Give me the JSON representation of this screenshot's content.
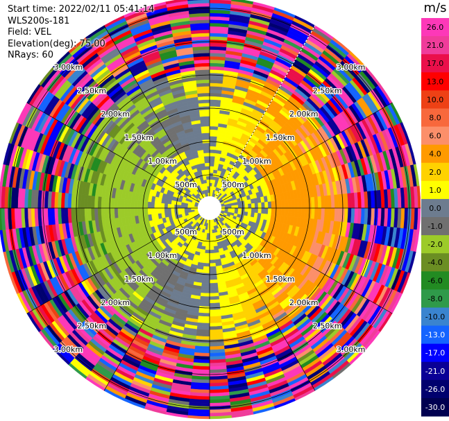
{
  "header": {
    "start_time": "Start time: 2022/02/11 05:41:14",
    "instrument": "WLS200s-181",
    "field": "Field: VEL",
    "elevation": "Elevation(deg): 75.00",
    "nrays": "NRays: 60"
  },
  "chart_data": {
    "type": "heatmap",
    "projection": "polar-ppi",
    "field": "VEL",
    "units": "m/s",
    "elevation_deg": 75.0,
    "n_rays": 60,
    "range_ring_labels": [
      "500m",
      "1.00km",
      "1.50km",
      "2.00km",
      "2.50km",
      "3.00km"
    ],
    "range_rings_km": [
      0.5,
      1.0,
      1.5,
      2.0,
      2.5,
      3.0
    ],
    "colorbar": {
      "label": "m/s",
      "ticks": [
        "26.0",
        "21.0",
        "17.0",
        "13.0",
        "10.0",
        "8.0",
        "6.0",
        "4.0",
        "2.0",
        "1.0",
        "0.0",
        "-1.0",
        "-2.0",
        "-4.0",
        "-6.0",
        "-8.0",
        "-10.0",
        "-13.0",
        "-17.0",
        "-21.0",
        "-26.0",
        "-30.0"
      ],
      "colors": [
        "#fd38b8",
        "#f03c9a",
        "#ea0f4a",
        "#ff0000",
        "#ee4115",
        "#f8683c",
        "#fc8f6a",
        "#ff9a00",
        "#ffd200",
        "#ffff00",
        "#6d7c8f",
        "#707070",
        "#9ccb29",
        "#6b8e23",
        "#228b22",
        "#2f9a4a",
        "#3a84cf",
        "#1464ff",
        "#0000ff",
        "#0a0096",
        "#00006e",
        "#000050"
      ],
      "range": [
        -30,
        26
      ]
    }
  }
}
